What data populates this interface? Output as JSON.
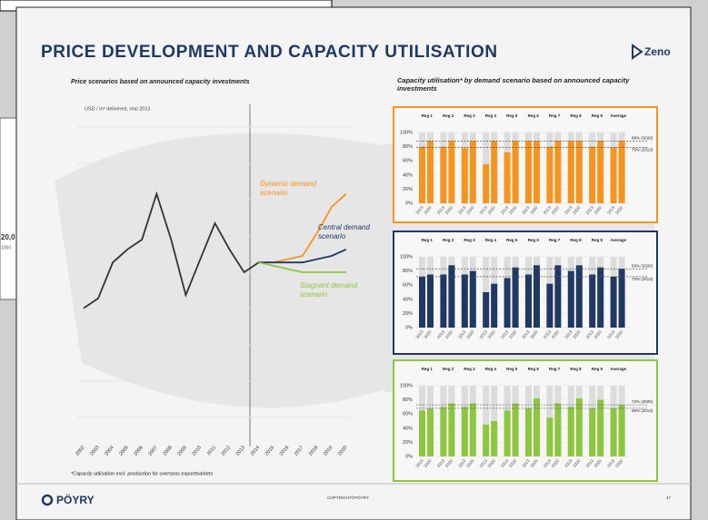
{
  "background": {
    "fragments": [
      "20,0",
      "1000"
    ]
  },
  "slide": {
    "title": "PRICE DEVELOPMENT AND CAPACITY UTILISATION",
    "logo": "Zeno",
    "right_title": "Capacity  utilisation* by demand scenario based on announced capacity investments",
    "footnote": "*Capacity utilisation  excl. production for overseas exportmarkets",
    "footer_logo": "PÖYRY",
    "copyright": "COPYRIGHT©PÖYRY",
    "page": "47"
  },
  "chart_data": [
    {
      "type": "line",
      "title": "Price scenarios based on announced capacity investments",
      "y_label": "USD / m³ delivered, real 2013",
      "categories": [
        "2002",
        "2003",
        "2004",
        "2005",
        "2006",
        "2007",
        "2008",
        "2009",
        "2010",
        "2011",
        "2012",
        "2013",
        "2014",
        "2015",
        "2016",
        "2017",
        "2018",
        "2019",
        "2020"
      ],
      "ylim": [
        0,
        100
      ],
      "series": [
        {
          "color": "#333333",
          "values": [
            39,
            42,
            53,
            57,
            60,
            74,
            60,
            43,
            54,
            65,
            57,
            50,
            53,
            null,
            null,
            null,
            null,
            null,
            null
          ]
        },
        {
          "name": "Dynamic demand scenario",
          "color": "#f7941d",
          "values": [
            null,
            null,
            null,
            null,
            null,
            null,
            null,
            null,
            null,
            null,
            null,
            null,
            53,
            53,
            54,
            55,
            62,
            70,
            74
          ]
        },
        {
          "name": "Central demand scenario",
          "color": "#1f3864",
          "values": [
            null,
            null,
            null,
            null,
            null,
            null,
            null,
            null,
            null,
            null,
            null,
            null,
            53,
            53,
            53,
            53,
            54,
            55,
            57
          ]
        },
        {
          "name": "Stagnant demand scenario",
          "color": "#8dc63f",
          "values": [
            null,
            null,
            null,
            null,
            null,
            null,
            null,
            null,
            null,
            null,
            null,
            null,
            53,
            52,
            51,
            50,
            50,
            50,
            50
          ]
        }
      ]
    },
    {
      "type": "bar",
      "categories": [
        "Reg 1",
        "Reg 2",
        "Reg 3",
        "Reg 4",
        "Reg 5",
        "Reg 6",
        "Reg 7",
        "Reg 8",
        "Reg 9",
        "Average"
      ],
      "ylim": [
        0,
        100
      ],
      "yticks": [
        {
          "value": 0,
          "label": "0%"
        },
        {
          "value": 20,
          "label": "20%"
        },
        {
          "value": 40,
          "label": "40%"
        },
        {
          "value": 60,
          "label": "60%"
        },
        {
          "value": 80,
          "label": "80%"
        },
        {
          "value": 100,
          "label": "100%"
        }
      ],
      "series": [
        {
          "name": "2013",
          "color": "#f7941d",
          "values": [
            80,
            80,
            78,
            55,
            72,
            88,
            80,
            88,
            80,
            79
          ]
        },
        {
          "name": "2020",
          "color": "#f7941d",
          "values": [
            88,
            88,
            88,
            88,
            88,
            88,
            88,
            88,
            88,
            88
          ]
        }
      ],
      "reference_lines": [
        {
          "value": 88,
          "label": "88% (2020)"
        },
        {
          "value": 79,
          "label": "79% (2013)"
        }
      ]
    },
    {
      "type": "bar",
      "categories": [
        "Reg 1",
        "Reg 2",
        "Reg 3",
        "Reg 4",
        "Reg 5",
        "Reg 6",
        "Reg 7",
        "Reg 8",
        "Reg 9",
        "Average"
      ],
      "ylim": [
        0,
        100
      ],
      "yticks": [
        {
          "value": 0,
          "label": "0%"
        },
        {
          "value": 20,
          "label": "20%"
        },
        {
          "value": 40,
          "label": "40%"
        },
        {
          "value": 60,
          "label": "60%"
        },
        {
          "value": 80,
          "label": "80%"
        },
        {
          "value": 100,
          "label": "100%"
        }
      ],
      "series": [
        {
          "name": "2013",
          "color": "#1f3864",
          "values": [
            72,
            75,
            75,
            50,
            70,
            75,
            62,
            80,
            75,
            72
          ]
        },
        {
          "name": "2020",
          "color": "#1f3864",
          "values": [
            75,
            88,
            80,
            62,
            85,
            88,
            88,
            88,
            85,
            83
          ]
        }
      ],
      "reference_lines": [
        {
          "value": 83,
          "label": "83% (2020)"
        },
        {
          "value": 72,
          "label": "72% (2013)"
        }
      ]
    },
    {
      "type": "bar",
      "categories": [
        "Reg 1",
        "Reg 2",
        "Reg 3",
        "Reg 4",
        "Reg 5",
        "Reg 6",
        "Reg 7",
        "Reg 8",
        "Reg 9",
        "Average"
      ],
      "ylim": [
        0,
        100
      ],
      "yticks": [
        {
          "value": 0,
          "label": "0%"
        },
        {
          "value": 20,
          "label": "20%"
        },
        {
          "value": 40,
          "label": "40%"
        },
        {
          "value": 60,
          "label": "60%"
        },
        {
          "value": 80,
          "label": "80%"
        },
        {
          "value": 100,
          "label": "100%"
        }
      ],
      "series": [
        {
          "name": "2013",
          "color": "#8dc63f",
          "values": [
            65,
            70,
            70,
            45,
            65,
            68,
            55,
            70,
            68,
            68
          ]
        },
        {
          "name": "2020",
          "color": "#8dc63f",
          "values": [
            68,
            75,
            75,
            50,
            75,
            82,
            75,
            82,
            80,
            73
          ]
        }
      ],
      "reference_lines": [
        {
          "value": 73,
          "label": "73% (2020)"
        },
        {
          "value": 68,
          "label": "68% (2013)"
        }
      ]
    }
  ]
}
